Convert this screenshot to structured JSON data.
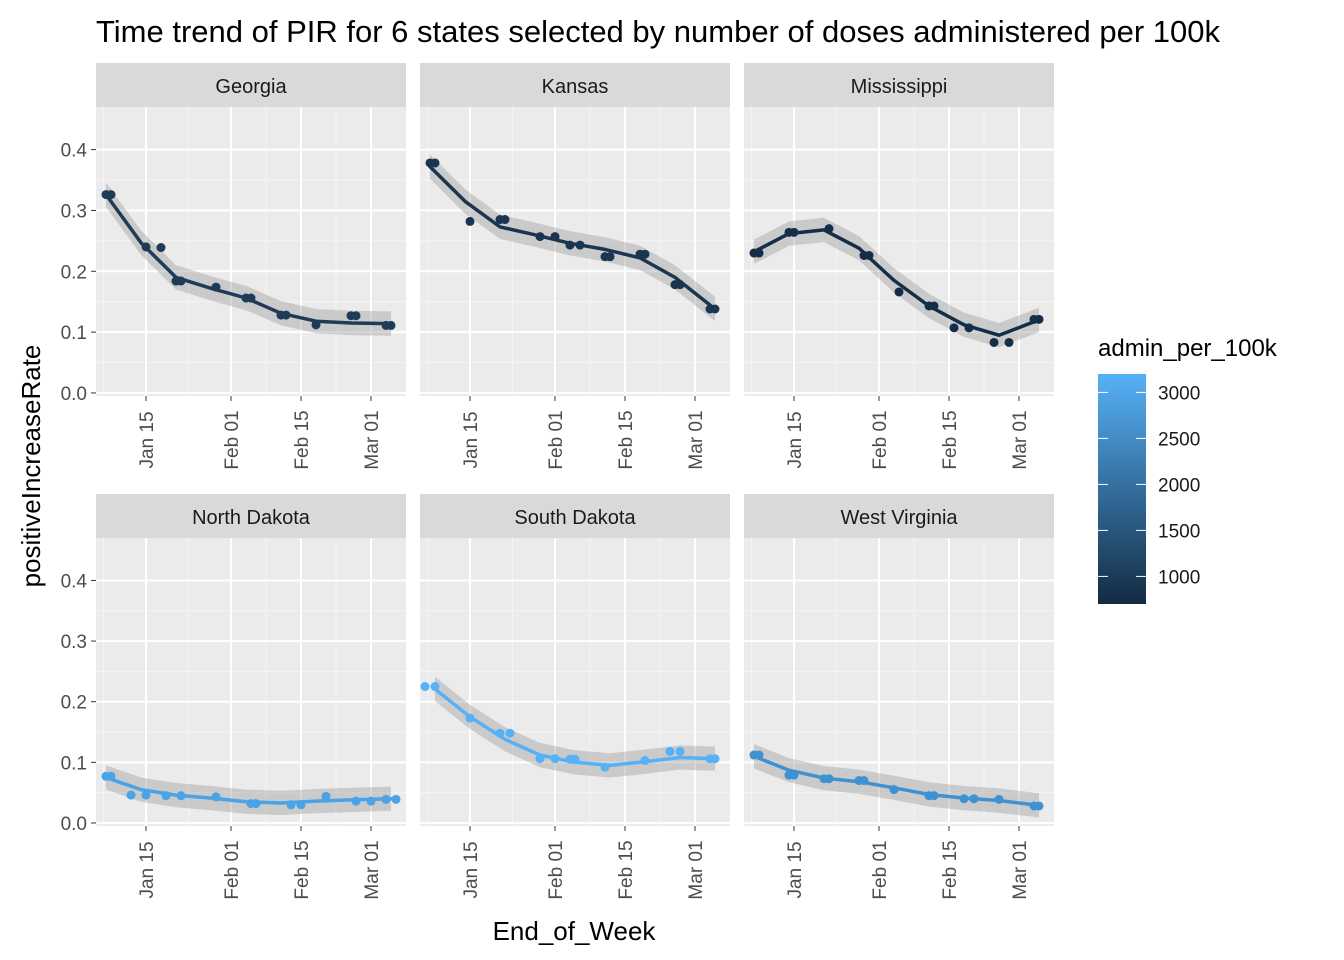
{
  "chart_data": {
    "type": "scatter",
    "title": "Time trend of PIR for 6 states selected by number of doses administered per 100k",
    "xlabel": "End_of_Week",
    "ylabel": "positiveIncreaseRate",
    "x_tick_labels": [
      "Jan 15",
      "Feb 01",
      "Feb 15",
      "Mar 01"
    ],
    "x_tick_dates": [
      "2021-01-15",
      "2021-02-01",
      "2021-02-15",
      "2021-03-01"
    ],
    "xlim": [
      "2021-01-05",
      "2021-03-08"
    ],
    "y_ticks": [
      0.0,
      0.1,
      0.2,
      0.3,
      0.4
    ],
    "y_tick_labels": [
      "0.0",
      "0.1",
      "0.2",
      "0.3",
      "0.4"
    ],
    "ylim": [
      -0.005,
      0.47
    ],
    "smoother": "loess with confidence band",
    "legend": {
      "title": "admin_per_100k",
      "type": "colorbar",
      "placement": "right",
      "ticks": [
        1000,
        1500,
        2000,
        2500,
        3000
      ],
      "tick_labels": [
        "1000",
        "1500",
        "2000",
        "2500",
        "3000"
      ],
      "range": [
        700,
        3200
      ],
      "low_color": "#132B43",
      "high_color": "#56B1F7"
    },
    "facets": [
      {
        "state": "Georgia",
        "color": "#1f3b58",
        "points": [
          [
            "2021-01-07",
            0.326
          ],
          [
            "2021-01-08",
            0.326
          ],
          [
            "2021-01-15",
            0.24
          ],
          [
            "2021-01-18",
            0.239
          ],
          [
            "2021-01-21",
            0.184
          ],
          [
            "2021-01-22",
            0.184
          ],
          [
            "2021-01-29",
            0.174
          ],
          [
            "2021-02-04",
            0.156
          ],
          [
            "2021-02-05",
            0.156
          ],
          [
            "2021-02-11",
            0.128
          ],
          [
            "2021-02-12",
            0.128
          ],
          [
            "2021-02-18",
            0.112
          ],
          [
            "2021-02-25",
            0.127
          ],
          [
            "2021-02-26",
            0.127
          ],
          [
            "2021-03-04",
            0.111
          ],
          [
            "2021-03-05",
            0.111
          ]
        ],
        "smooth": [
          [
            "2021-01-07",
            0.326
          ],
          [
            "2021-01-14",
            0.247
          ],
          [
            "2021-01-21",
            0.19
          ],
          [
            "2021-01-28",
            0.172
          ],
          [
            "2021-02-04",
            0.156
          ],
          [
            "2021-02-11",
            0.131
          ],
          [
            "2021-02-18",
            0.118
          ],
          [
            "2021-02-25",
            0.115
          ],
          [
            "2021-03-05",
            0.114
          ]
        ]
      },
      {
        "state": "Kansas",
        "color": "#1a3550",
        "points": [
          [
            "2021-01-07",
            0.378
          ],
          [
            "2021-01-08",
            0.378
          ],
          [
            "2021-01-15",
            0.282
          ],
          [
            "2021-01-21",
            0.285
          ],
          [
            "2021-01-22",
            0.285
          ],
          [
            "2021-01-29",
            0.257
          ],
          [
            "2021-02-01",
            0.257
          ],
          [
            "2021-02-04",
            0.243
          ],
          [
            "2021-02-06",
            0.243
          ],
          [
            "2021-02-11",
            0.224
          ],
          [
            "2021-02-12",
            0.224
          ],
          [
            "2021-02-18",
            0.228
          ],
          [
            "2021-02-19",
            0.228
          ],
          [
            "2021-02-25",
            0.178
          ],
          [
            "2021-02-26",
            0.178
          ],
          [
            "2021-03-04",
            0.138
          ],
          [
            "2021-03-05",
            0.138
          ]
        ],
        "smooth": [
          [
            "2021-01-07",
            0.372
          ],
          [
            "2021-01-14",
            0.315
          ],
          [
            "2021-01-21",
            0.273
          ],
          [
            "2021-01-28",
            0.26
          ],
          [
            "2021-02-04",
            0.246
          ],
          [
            "2021-02-11",
            0.236
          ],
          [
            "2021-02-18",
            0.222
          ],
          [
            "2021-02-25",
            0.19
          ],
          [
            "2021-03-05",
            0.138
          ]
        ]
      },
      {
        "state": "Mississippi",
        "color": "#152e47",
        "points": [
          [
            "2021-01-07",
            0.23
          ],
          [
            "2021-01-08",
            0.23
          ],
          [
            "2021-01-14",
            0.264
          ],
          [
            "2021-01-15",
            0.264
          ],
          [
            "2021-01-22",
            0.27
          ],
          [
            "2021-01-29",
            0.226
          ],
          [
            "2021-01-30",
            0.226
          ],
          [
            "2021-02-05",
            0.166
          ],
          [
            "2021-02-11",
            0.143
          ],
          [
            "2021-02-12",
            0.143
          ],
          [
            "2021-02-16",
            0.107
          ],
          [
            "2021-02-19",
            0.107
          ],
          [
            "2021-02-24",
            0.083
          ],
          [
            "2021-02-27",
            0.083
          ],
          [
            "2021-03-04",
            0.121
          ],
          [
            "2021-03-05",
            0.121
          ]
        ],
        "smooth": [
          [
            "2021-01-07",
            0.232
          ],
          [
            "2021-01-14",
            0.262
          ],
          [
            "2021-01-21",
            0.268
          ],
          [
            "2021-01-28",
            0.238
          ],
          [
            "2021-02-04",
            0.185
          ],
          [
            "2021-02-11",
            0.143
          ],
          [
            "2021-02-18",
            0.112
          ],
          [
            "2021-02-25",
            0.095
          ],
          [
            "2021-03-05",
            0.12
          ]
        ]
      },
      {
        "state": "North Dakota",
        "color": "#4aa3e6",
        "points": [
          [
            "2021-01-07",
            0.077
          ],
          [
            "2021-01-08",
            0.077
          ],
          [
            "2021-01-12",
            0.046
          ],
          [
            "2021-01-15",
            0.046
          ],
          [
            "2021-01-19",
            0.045
          ],
          [
            "2021-01-22",
            0.045
          ],
          [
            "2021-01-29",
            0.043
          ],
          [
            "2021-02-05",
            0.032
          ],
          [
            "2021-02-06",
            0.032
          ],
          [
            "2021-02-13",
            0.03
          ],
          [
            "2021-02-15",
            0.03
          ],
          [
            "2021-02-20",
            0.044
          ],
          [
            "2021-02-26",
            0.036
          ],
          [
            "2021-03-01",
            0.036
          ],
          [
            "2021-03-04",
            0.039
          ],
          [
            "2021-03-06",
            0.039
          ]
        ],
        "smooth": [
          [
            "2021-01-07",
            0.075
          ],
          [
            "2021-01-14",
            0.055
          ],
          [
            "2021-01-21",
            0.046
          ],
          [
            "2021-01-28",
            0.041
          ],
          [
            "2021-02-04",
            0.035
          ],
          [
            "2021-02-11",
            0.033
          ],
          [
            "2021-02-18",
            0.036
          ],
          [
            "2021-02-25",
            0.038
          ],
          [
            "2021-03-05",
            0.04
          ]
        ]
      },
      {
        "state": "South Dakota",
        "color": "#56b1f7",
        "points": [
          [
            "2021-01-06",
            0.225
          ],
          [
            "2021-01-08",
            0.225
          ],
          [
            "2021-01-15",
            0.173
          ],
          [
            "2021-01-21",
            0.148
          ],
          [
            "2021-01-23",
            0.148
          ],
          [
            "2021-01-29",
            0.106
          ],
          [
            "2021-02-01",
            0.106
          ],
          [
            "2021-02-04",
            0.105
          ],
          [
            "2021-02-05",
            0.105
          ],
          [
            "2021-02-11",
            0.092
          ],
          [
            "2021-02-19",
            0.103
          ],
          [
            "2021-02-24",
            0.118
          ],
          [
            "2021-02-26",
            0.118
          ],
          [
            "2021-03-04",
            0.106
          ],
          [
            "2021-03-05",
            0.106
          ]
        ],
        "smooth": [
          [
            "2021-01-08",
            0.221
          ],
          [
            "2021-01-15",
            0.175
          ],
          [
            "2021-01-22",
            0.138
          ],
          [
            "2021-01-29",
            0.112
          ],
          [
            "2021-02-05",
            0.1
          ],
          [
            "2021-02-12",
            0.095
          ],
          [
            "2021-02-19",
            0.101
          ],
          [
            "2021-02-26",
            0.108
          ],
          [
            "2021-03-05",
            0.106
          ]
        ]
      },
      {
        "state": "West Virginia",
        "color": "#3f92d2",
        "points": [
          [
            "2021-01-07",
            0.112
          ],
          [
            "2021-01-08",
            0.112
          ],
          [
            "2021-01-14",
            0.079
          ],
          [
            "2021-01-15",
            0.079
          ],
          [
            "2021-01-21",
            0.073
          ],
          [
            "2021-01-22",
            0.073
          ],
          [
            "2021-01-28",
            0.07
          ],
          [
            "2021-01-29",
            0.07
          ],
          [
            "2021-02-04",
            0.055
          ],
          [
            "2021-02-11",
            0.045
          ],
          [
            "2021-02-12",
            0.045
          ],
          [
            "2021-02-18",
            0.04
          ],
          [
            "2021-02-20",
            0.04
          ],
          [
            "2021-02-25",
            0.039
          ],
          [
            "2021-03-04",
            0.028
          ],
          [
            "2021-03-05",
            0.028
          ]
        ],
        "smooth": [
          [
            "2021-01-07",
            0.11
          ],
          [
            "2021-01-14",
            0.087
          ],
          [
            "2021-01-21",
            0.074
          ],
          [
            "2021-01-28",
            0.068
          ],
          [
            "2021-02-04",
            0.058
          ],
          [
            "2021-02-11",
            0.047
          ],
          [
            "2021-02-18",
            0.041
          ],
          [
            "2021-02-25",
            0.037
          ],
          [
            "2021-03-05",
            0.029
          ]
        ]
      }
    ]
  }
}
